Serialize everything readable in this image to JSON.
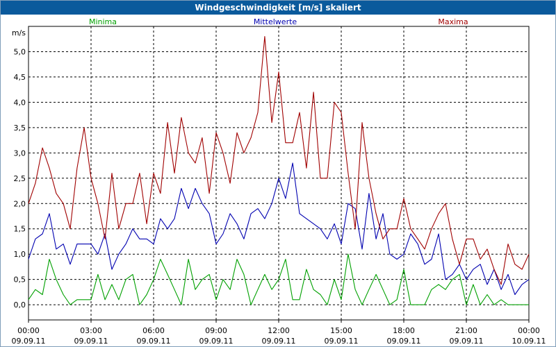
{
  "window": {
    "title": "Windgeschwindigkeit [m/s] skaliert"
  },
  "chart_data": {
    "type": "line",
    "title": "Windgeschwindigkeit [m/s] skaliert",
    "ylabel": "m/s",
    "xlabel": "",
    "ylim": [
      -0.3,
      5.5
    ],
    "xlim": [
      0,
      24
    ],
    "grid": true,
    "legend_position": "top",
    "y_ticks": [
      {
        "value": 0.0,
        "label": "0,0"
      },
      {
        "value": 0.5,
        "label": "0,5"
      },
      {
        "value": 1.0,
        "label": "1,0"
      },
      {
        "value": 1.5,
        "label": "1,5"
      },
      {
        "value": 2.0,
        "label": "2,0"
      },
      {
        "value": 2.5,
        "label": "2,5"
      },
      {
        "value": 3.0,
        "label": "3,0"
      },
      {
        "value": 3.5,
        "label": "3,5"
      },
      {
        "value": 4.0,
        "label": "4,0"
      },
      {
        "value": 4.5,
        "label": "4,5"
      },
      {
        "value": 5.0,
        "label": "5,0"
      }
    ],
    "x_ticks": [
      {
        "value": 0,
        "time": "00:00",
        "date": "09.09.11"
      },
      {
        "value": 3,
        "time": "03:00",
        "date": "09.09.11"
      },
      {
        "value": 6,
        "time": "06:00",
        "date": "09.09.11"
      },
      {
        "value": 9,
        "time": "09:00",
        "date": "09.09.11"
      },
      {
        "value": 12,
        "time": "12:00",
        "date": "09.09.11"
      },
      {
        "value": 15,
        "time": "15:00",
        "date": "09.09.11"
      },
      {
        "value": 18,
        "time": "18:00",
        "date": "09.09.11"
      },
      {
        "value": 21,
        "time": "21:00",
        "date": "09.09.11"
      },
      {
        "value": 24,
        "time": "00:00",
        "date": "10.09.11"
      }
    ],
    "series": [
      {
        "name": "Minima",
        "color": "#00a000",
        "x": [
          0,
          0.33,
          0.67,
          1,
          1.33,
          1.67,
          2,
          2.33,
          2.67,
          3,
          3.33,
          3.67,
          4,
          4.33,
          4.67,
          5,
          5.33,
          5.67,
          6,
          6.33,
          6.67,
          7,
          7.33,
          7.67,
          8,
          8.33,
          8.67,
          9,
          9.33,
          9.67,
          10,
          10.33,
          10.67,
          11,
          11.33,
          11.67,
          12,
          12.33,
          12.67,
          13,
          13.33,
          13.67,
          14,
          14.33,
          14.67,
          15,
          15.33,
          15.67,
          16,
          16.33,
          16.67,
          17,
          17.33,
          17.67,
          18,
          18.33,
          18.67,
          19,
          19.33,
          19.67,
          20,
          20.33,
          20.67,
          21,
          21.33,
          21.67,
          22,
          22.33,
          22.67,
          23,
          23.33,
          23.67,
          24
        ],
        "values": [
          0.1,
          0.3,
          0.2,
          0.9,
          0.5,
          0.2,
          0.0,
          0.1,
          0.1,
          0.1,
          0.6,
          0.1,
          0.4,
          0.1,
          0.5,
          0.6,
          0.0,
          0.2,
          0.5,
          0.9,
          0.6,
          0.3,
          0.0,
          0.9,
          0.3,
          0.5,
          0.6,
          0.1,
          0.5,
          0.3,
          0.9,
          0.6,
          0.0,
          0.3,
          0.6,
          0.3,
          0.5,
          0.9,
          0.1,
          0.1,
          0.7,
          0.3,
          0.2,
          0.0,
          0.5,
          0.1,
          1.0,
          0.3,
          0.0,
          0.3,
          0.6,
          0.3,
          0.0,
          0.1,
          0.7,
          0.0,
          0.0,
          0.0,
          0.3,
          0.4,
          0.3,
          0.5,
          0.6,
          0.0,
          0.4,
          0.0,
          0.2,
          0.0,
          0.1,
          0.0,
          0.0,
          0.0,
          0.0
        ]
      },
      {
        "name": "Mittelwerte",
        "color": "#0000b0",
        "x": [
          0,
          0.33,
          0.67,
          1,
          1.33,
          1.67,
          2,
          2.33,
          2.67,
          3,
          3.33,
          3.67,
          4,
          4.33,
          4.67,
          5,
          5.33,
          5.67,
          6,
          6.33,
          6.67,
          7,
          7.33,
          7.67,
          8,
          8.33,
          8.67,
          9,
          9.33,
          9.67,
          10,
          10.33,
          10.67,
          11,
          11.33,
          11.67,
          12,
          12.33,
          12.67,
          13,
          13.33,
          13.67,
          14,
          14.33,
          14.67,
          15,
          15.33,
          15.67,
          16,
          16.33,
          16.67,
          17,
          17.33,
          17.67,
          18,
          18.33,
          18.67,
          19,
          19.33,
          19.67,
          20,
          20.33,
          20.67,
          21,
          21.33,
          21.67,
          22,
          22.33,
          22.67,
          23,
          23.33,
          23.67,
          24
        ],
        "values": [
          0.9,
          1.3,
          1.4,
          1.8,
          1.1,
          1.2,
          0.8,
          1.2,
          1.2,
          1.2,
          1.0,
          1.4,
          0.7,
          1.0,
          1.2,
          1.5,
          1.3,
          1.3,
          1.2,
          1.7,
          1.5,
          1.7,
          2.3,
          1.9,
          2.3,
          2.0,
          1.8,
          1.2,
          1.4,
          1.8,
          1.6,
          1.3,
          1.8,
          1.9,
          1.7,
          2.0,
          2.5,
          2.1,
          2.8,
          1.8,
          1.7,
          1.6,
          1.5,
          1.3,
          1.6,
          1.2,
          2.0,
          1.9,
          1.1,
          2.2,
          1.3,
          1.8,
          1.0,
          0.9,
          1.0,
          1.4,
          1.2,
          0.8,
          0.9,
          1.4,
          0.5,
          0.6,
          0.8,
          0.5,
          0.7,
          0.8,
          0.4,
          0.7,
          0.3,
          0.6,
          0.2,
          0.4,
          0.5
        ]
      },
      {
        "name": "Maxima",
        "color": "#a00000",
        "x": [
          0,
          0.33,
          0.67,
          1,
          1.33,
          1.67,
          2,
          2.33,
          2.67,
          3,
          3.33,
          3.67,
          4,
          4.33,
          4.67,
          5,
          5.33,
          5.67,
          6,
          6.33,
          6.67,
          7,
          7.33,
          7.67,
          8,
          8.33,
          8.67,
          9,
          9.33,
          9.67,
          10,
          10.33,
          10.67,
          11,
          11.33,
          11.67,
          12,
          12.33,
          12.67,
          13,
          13.33,
          13.67,
          14,
          14.33,
          14.67,
          15,
          15.33,
          15.67,
          16,
          16.33,
          16.67,
          17,
          17.33,
          17.67,
          18,
          18.33,
          18.67,
          19,
          19.33,
          19.67,
          20,
          20.33,
          20.67,
          21,
          21.33,
          21.67,
          22,
          22.33,
          22.67,
          23,
          23.33,
          23.67,
          24
        ],
        "values": [
          2.0,
          2.4,
          3.1,
          2.7,
          2.2,
          2.0,
          1.5,
          2.7,
          3.5,
          2.5,
          2.0,
          1.3,
          2.6,
          1.5,
          2.0,
          2.0,
          2.6,
          1.6,
          2.6,
          2.2,
          3.6,
          2.6,
          3.7,
          3.0,
          2.8,
          3.3,
          2.2,
          3.4,
          3.0,
          2.4,
          3.4,
          3.0,
          3.3,
          3.8,
          5.3,
          3.6,
          4.6,
          3.2,
          3.2,
          3.8,
          2.7,
          4.2,
          2.5,
          2.5,
          4.0,
          3.8,
          2.6,
          1.5,
          3.6,
          2.5,
          1.8,
          1.3,
          1.5,
          1.5,
          2.1,
          1.5,
          1.3,
          1.1,
          1.5,
          1.8,
          2.0,
          1.3,
          0.8,
          1.3,
          1.3,
          0.9,
          1.1,
          0.7,
          0.4,
          1.2,
          0.8,
          0.7,
          1.0
        ]
      }
    ]
  }
}
